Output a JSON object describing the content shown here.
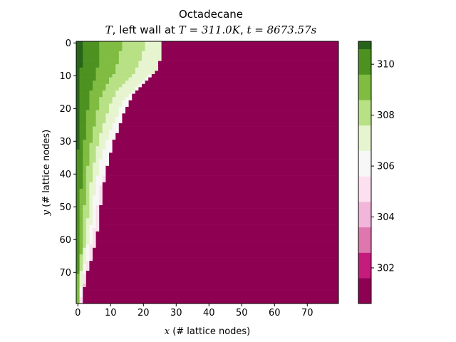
{
  "chart_data": {
    "type": "heatmap",
    "title": "Octadecane",
    "subtitle_parts": {
      "var": "T",
      "text1": ", left wall at ",
      "eq1": "T = 311.0K",
      "sep": ", ",
      "eq2": "t = 8673.57s"
    },
    "xlabel": {
      "var": "x",
      "text": " (# lattice nodes)"
    },
    "ylabel": {
      "var": "y",
      "text": " (# lattice nodes)"
    },
    "grid_size": [
      80,
      80
    ],
    "x_range": [
      -0.5,
      79.5
    ],
    "y_range": [
      79.5,
      -0.5
    ],
    "y_inverted": true,
    "x_ticks": [
      "0",
      "10",
      "20",
      "30",
      "40",
      "50",
      "60",
      "70"
    ],
    "y_ticks": [
      "0",
      "10",
      "20",
      "30",
      "40",
      "50",
      "60",
      "70"
    ],
    "colorbar": {
      "range": [
        300.6,
        310.9
      ],
      "ticks": [
        "302",
        "304",
        "306",
        "308",
        "310"
      ],
      "levels": [
        {
          "min": 300.6,
          "max": 301.6,
          "color": "#8e0152"
        },
        {
          "min": 301.6,
          "max": 302.6,
          "color": "#c51b7d"
        },
        {
          "min": 302.6,
          "max": 303.6,
          "color": "#de77ae"
        },
        {
          "min": 303.6,
          "max": 304.6,
          "color": "#f1b6da"
        },
        {
          "min": 304.6,
          "max": 305.6,
          "color": "#fde0ef"
        },
        {
          "min": 305.6,
          "max": 306.6,
          "color": "#f7f7f7"
        },
        {
          "min": 306.6,
          "max": 307.6,
          "color": "#e6f5d0"
        },
        {
          "min": 307.6,
          "max": 308.6,
          "color": "#b8e186"
        },
        {
          "min": 308.6,
          "max": 309.6,
          "color": "#7fbc41"
        },
        {
          "min": 309.6,
          "max": 310.6,
          "color": "#4d9221"
        },
        {
          "min": 310.6,
          "max": 310.9,
          "color": "#276419"
        }
      ]
    },
    "solid_value": 301.0,
    "wall_value": 311.0,
    "melt_front_x_by_row": [
      [
        0,
        26.5
      ],
      [
        4,
        26.0
      ],
      [
        8,
        25.0
      ],
      [
        10,
        23.0
      ],
      [
        12,
        21.0
      ],
      [
        15,
        18.0
      ],
      [
        18,
        16.0
      ],
      [
        22,
        14.5
      ],
      [
        26,
        13.0
      ],
      [
        30,
        11.5
      ],
      [
        35,
        10.0
      ],
      [
        40,
        9.0
      ],
      [
        45,
        8.0
      ],
      [
        50,
        7.5
      ],
      [
        55,
        7.0
      ],
      [
        60,
        6.0
      ],
      [
        65,
        5.0
      ],
      [
        70,
        3.5
      ],
      [
        75,
        2.5
      ],
      [
        79,
        2.0
      ]
    ],
    "melt_front_x_range": [
      1.0,
      27.0
    ],
    "melt_temperature": 305.5
  }
}
